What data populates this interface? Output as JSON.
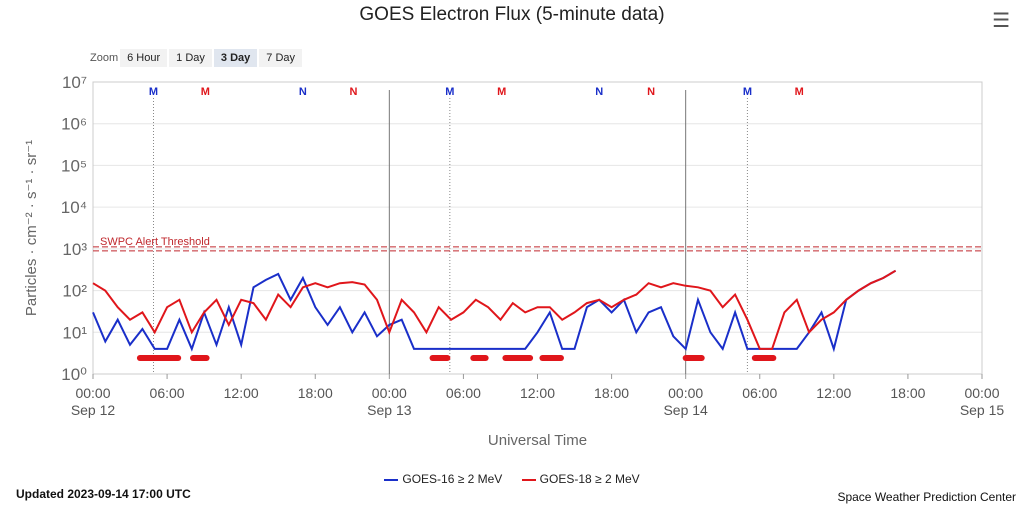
{
  "header": {
    "title": "GOES Electron Flux (5-minute data)",
    "menu_icon": "hamburger-icon"
  },
  "zoom": {
    "label": "Zoom",
    "buttons": [
      "6 Hour",
      "1 Day",
      "3 Day",
      "7 Day"
    ],
    "active": "3 Day"
  },
  "footer": {
    "updated": "Updated 2023-09-14 17:00 UTC",
    "credit": "Space Weather Prediction Center"
  },
  "chart_data": {
    "type": "line",
    "title": "GOES Electron Flux (5-minute data)",
    "xlabel": "Universal Time",
    "ylabel": "Particles · cm⁻² · s⁻¹ · sr⁻¹",
    "yscale": "log",
    "ylim": [
      1,
      10000000
    ],
    "xlim_hours": [
      0,
      72
    ],
    "yticks": [
      "10⁰",
      "10¹",
      "10²",
      "10³",
      "10⁴",
      "10⁵",
      "10⁶",
      "10⁷"
    ],
    "xticks": [
      {
        "h": 0,
        "t": "00:00",
        "d": "Sep 12"
      },
      {
        "h": 6,
        "t": "06:00",
        "d": ""
      },
      {
        "h": 12,
        "t": "12:00",
        "d": ""
      },
      {
        "h": 18,
        "t": "18:00",
        "d": ""
      },
      {
        "h": 24,
        "t": "00:00",
        "d": "Sep 13"
      },
      {
        "h": 30,
        "t": "06:00",
        "d": ""
      },
      {
        "h": 36,
        "t": "12:00",
        "d": ""
      },
      {
        "h": 42,
        "t": "18:00",
        "d": ""
      },
      {
        "h": 48,
        "t": "00:00",
        "d": "Sep 14"
      },
      {
        "h": 54,
        "t": "06:00",
        "d": ""
      },
      {
        "h": 60,
        "t": "12:00",
        "d": ""
      },
      {
        "h": 66,
        "t": "18:00",
        "d": ""
      },
      {
        "h": 72,
        "t": "00:00",
        "d": "Sep 15"
      }
    ],
    "threshold": {
      "value": 1000,
      "label": "SWPC Alert Threshold",
      "color": "#c0282d"
    },
    "day_lines_hours": [
      24,
      48
    ],
    "noon_markers": [
      {
        "h": 4.9,
        "label": "M",
        "color": "#1a2fc9",
        "dotted": true
      },
      {
        "h": 9.1,
        "label": "M",
        "color": "#e0161b"
      },
      {
        "h": 17,
        "label": "N",
        "color": "#1a2fc9"
      },
      {
        "h": 21.1,
        "label": "N",
        "color": "#e0161b"
      },
      {
        "h": 28.9,
        "label": "M",
        "color": "#1a2fc9",
        "dotted": true
      },
      {
        "h": 33.1,
        "label": "M",
        "color": "#e0161b"
      },
      {
        "h": 41,
        "label": "N",
        "color": "#1a2fc9"
      },
      {
        "h": 45.2,
        "label": "N",
        "color": "#e0161b"
      },
      {
        "h": 53,
        "label": "M",
        "color": "#1a2fc9",
        "dotted": true
      },
      {
        "h": 57.2,
        "label": "M",
        "color": "#e0161b"
      }
    ],
    "gap_bars_hours": [
      [
        3.8,
        6.9
      ],
      [
        8.1,
        9.2
      ],
      [
        27.5,
        28.7
      ],
      [
        30.8,
        31.8
      ],
      [
        33.4,
        35.4
      ],
      [
        36.4,
        37.9
      ],
      [
        48.0,
        49.3
      ],
      [
        53.6,
        55.1
      ]
    ],
    "series": [
      {
        "name": "GOES-16 ≥ 2 MeV",
        "color": "#1a2fc9",
        "start_hour": 0,
        "step_hours": 1,
        "values": [
          30,
          6,
          20,
          5,
          12,
          4,
          4,
          20,
          4,
          30,
          5,
          40,
          5,
          120,
          180,
          250,
          60,
          200,
          40,
          15,
          40,
          10,
          30,
          8,
          15,
          20,
          4,
          4,
          4,
          4,
          4,
          4,
          4,
          4,
          4,
          4,
          10,
          30,
          4,
          4,
          40,
          60,
          30,
          60,
          10,
          30,
          40,
          8,
          4,
          60,
          10,
          4,
          30,
          4,
          4,
          4,
          4,
          4,
          10,
          30,
          4,
          60,
          100,
          150,
          200,
          300
        ]
      },
      {
        "name": "GOES-18 ≥ 2 MeV",
        "color": "#e0161b",
        "start_hour": 0,
        "step_hours": 1,
        "values": [
          150,
          100,
          40,
          20,
          30,
          10,
          40,
          60,
          10,
          30,
          60,
          15,
          60,
          50,
          20,
          80,
          40,
          120,
          150,
          120,
          150,
          160,
          140,
          60,
          10,
          60,
          30,
          10,
          40,
          20,
          30,
          60,
          40,
          20,
          50,
          30,
          40,
          40,
          20,
          30,
          50,
          60,
          40,
          60,
          80,
          150,
          120,
          150,
          130,
          120,
          100,
          40,
          80,
          20,
          4,
          4,
          30,
          60,
          10,
          20,
          30,
          60,
          100,
          150,
          200,
          300
        ]
      }
    ]
  }
}
